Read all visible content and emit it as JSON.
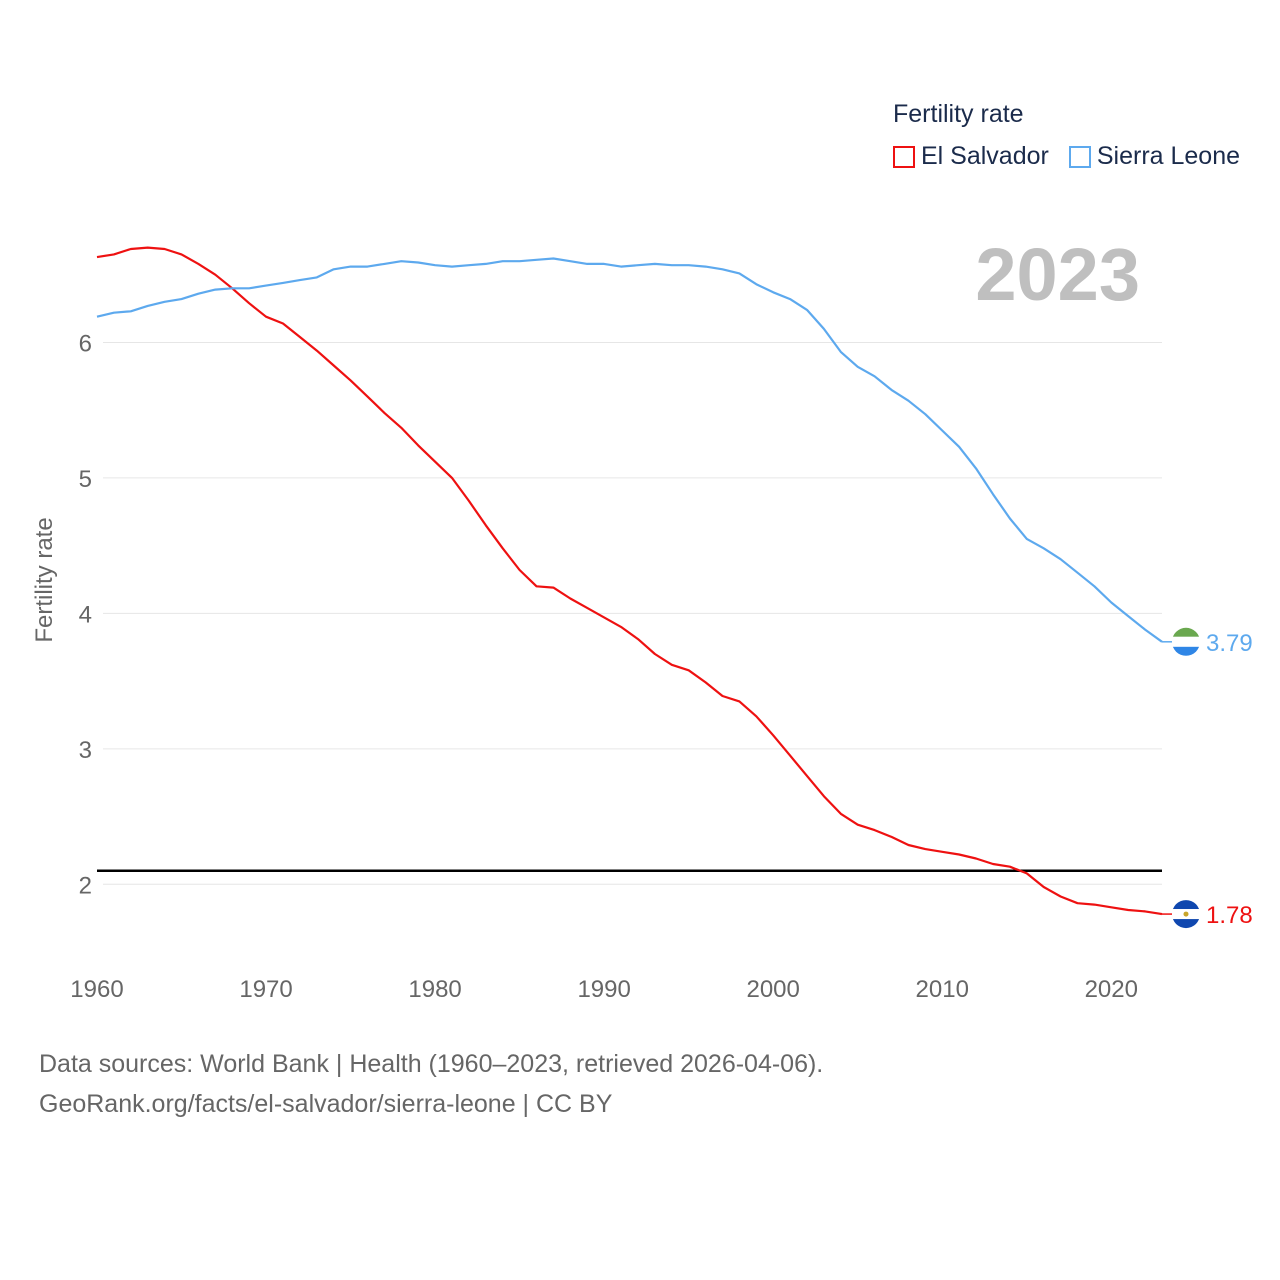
{
  "legend": {
    "title": "Fertility rate",
    "items": [
      {
        "label": "El Salvador",
        "color": "#ee1111"
      },
      {
        "label": "Sierra Leone",
        "color": "#5da9ee"
      }
    ]
  },
  "footer": {
    "line1": "Data sources: World Bank | Health (1960–2023, retrieved 2026-04-06).",
    "line2": "GeoRank.org/facts/el-salvador/sierra-leone | CC BY"
  },
  "chart_data": {
    "type": "line",
    "title": "Fertility rate",
    "year_label": "2023",
    "ylabel": "Fertility rate",
    "xlabel": "",
    "xlim": [
      1960,
      2023
    ],
    "ylim": [
      1.5,
      7.0
    ],
    "x_ticks": [
      1960,
      1970,
      1980,
      1990,
      2000,
      2010,
      2020
    ],
    "y_ticks": [
      2,
      3,
      4,
      5,
      6
    ],
    "reference_line": 2.1,
    "x": [
      1960,
      1961,
      1962,
      1963,
      1964,
      1965,
      1966,
      1967,
      1968,
      1969,
      1970,
      1971,
      1972,
      1973,
      1974,
      1975,
      1976,
      1977,
      1978,
      1979,
      1980,
      1981,
      1982,
      1983,
      1984,
      1985,
      1986,
      1987,
      1988,
      1989,
      1990,
      1991,
      1992,
      1993,
      1994,
      1995,
      1996,
      1997,
      1998,
      1999,
      2000,
      2001,
      2002,
      2003,
      2004,
      2005,
      2006,
      2007,
      2008,
      2009,
      2010,
      2011,
      2012,
      2013,
      2014,
      2015,
      2016,
      2017,
      2018,
      2019,
      2020,
      2021,
      2022,
      2023
    ],
    "series": [
      {
        "name": "El Salvador",
        "color": "#ee1111",
        "end_label": "1.78",
        "values": [
          6.63,
          6.65,
          6.69,
          6.7,
          6.69,
          6.65,
          6.58,
          6.5,
          6.4,
          6.29,
          6.19,
          6.14,
          6.04,
          5.94,
          5.83,
          5.72,
          5.6,
          5.48,
          5.37,
          5.24,
          5.12,
          5.0,
          4.83,
          4.65,
          4.48,
          4.32,
          4.2,
          4.19,
          4.11,
          4.04,
          3.97,
          3.9,
          3.81,
          3.7,
          3.62,
          3.58,
          3.49,
          3.39,
          3.35,
          3.24,
          3.1,
          2.95,
          2.8,
          2.65,
          2.52,
          2.44,
          2.4,
          2.35,
          2.29,
          2.26,
          2.24,
          2.22,
          2.19,
          2.15,
          2.13,
          2.08,
          1.98,
          1.91,
          1.86,
          1.85,
          1.83,
          1.81,
          1.8,
          1.78
        ]
      },
      {
        "name": "Sierra Leone",
        "color": "#5da9ee",
        "end_label": "3.79",
        "values": [
          6.19,
          6.22,
          6.23,
          6.27,
          6.3,
          6.32,
          6.36,
          6.39,
          6.4,
          6.4,
          6.42,
          6.44,
          6.46,
          6.48,
          6.54,
          6.56,
          6.56,
          6.58,
          6.6,
          6.59,
          6.57,
          6.56,
          6.57,
          6.58,
          6.6,
          6.6,
          6.61,
          6.62,
          6.6,
          6.58,
          6.58,
          6.56,
          6.57,
          6.58,
          6.57,
          6.57,
          6.56,
          6.54,
          6.51,
          6.43,
          6.37,
          6.32,
          6.24,
          6.1,
          5.93,
          5.82,
          5.75,
          5.65,
          5.57,
          5.47,
          5.35,
          5.23,
          5.07,
          4.88,
          4.7,
          4.55,
          4.48,
          4.4,
          4.3,
          4.2,
          4.08,
          3.98,
          3.88,
          3.79
        ]
      }
    ]
  }
}
